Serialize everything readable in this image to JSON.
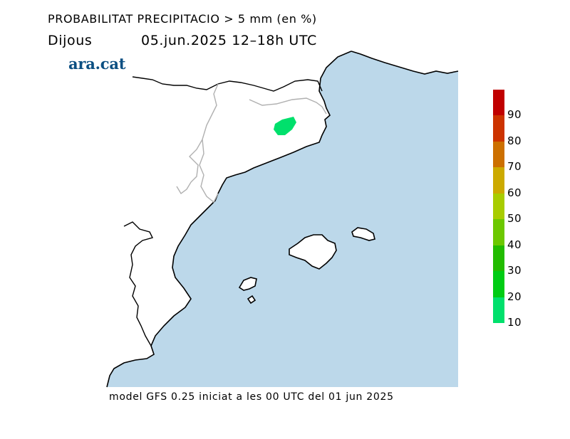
{
  "header": {
    "title": "PROBABILITAT PRECIPITACIO > 5 mm (en %)",
    "day": "Dijous",
    "date_range": "05.jun.2025 12–18h UTC"
  },
  "logo": {
    "text": "ara.cat",
    "color": "#0b4f82"
  },
  "map": {
    "sea_color": "#bcd8ea",
    "land_color": "#ffffff",
    "coast_color": "#000000",
    "border_color": "#b0b0b0",
    "probability_areas": [
      {
        "value_percent_class": 10,
        "color": "#00e06c"
      }
    ]
  },
  "legend": {
    "colors": [
      "#c00000",
      "#cc3300",
      "#cc7000",
      "#ccaa00",
      "#a8cc00",
      "#6cc800",
      "#22bc00",
      "#00cc14",
      "#00e06c"
    ],
    "labels": [
      "90",
      "80",
      "70",
      "60",
      "50",
      "40",
      "30",
      "20",
      "10"
    ]
  },
  "footer": {
    "text": "model GFS 0.25 iniciat a les 00 UTC del 01 jun 2025"
  }
}
